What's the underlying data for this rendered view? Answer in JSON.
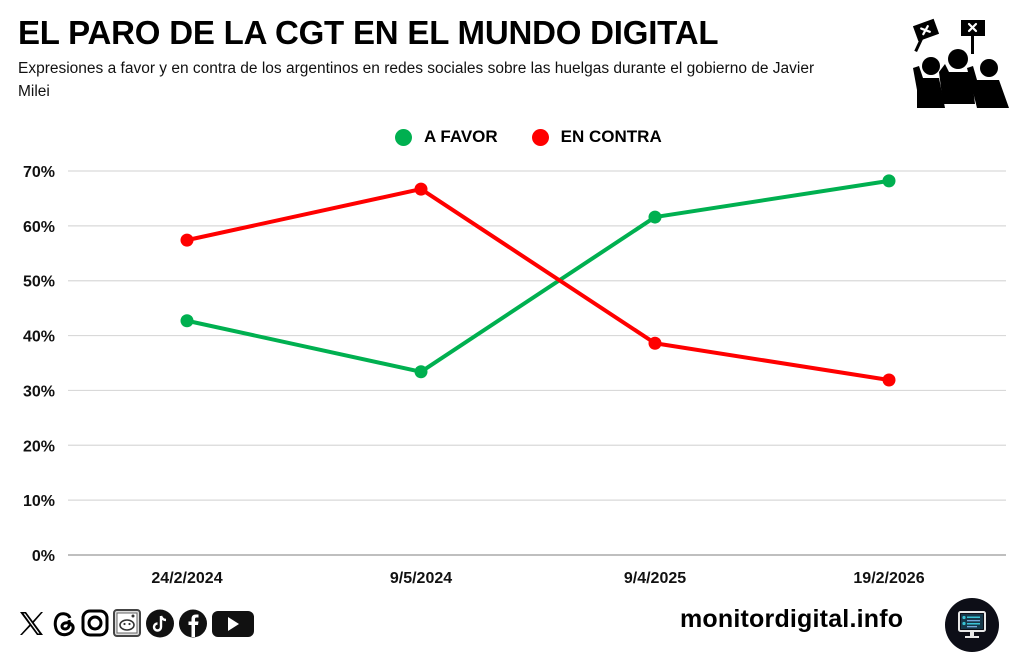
{
  "header": {
    "title": "EL PARO DE LA CGT EN EL MUNDO DIGITAL",
    "subtitle": "Expresiones a favor y en contra de los argentinos en redes sociales sobre las huelgas durante el gobierno de Javier Milei",
    "icon": "protest-crowd-icon"
  },
  "colors": {
    "favor": "#00b050",
    "contra": "#ff0000",
    "grid": "#d9d9d9",
    "axis": "#bfbfbf"
  },
  "chart_data": {
    "type": "line",
    "title": "EL PARO DE LA CGT EN EL MUNDO DIGITAL",
    "subtitle": "Expresiones a favor y en contra de los argentinos en redes sociales sobre las huelgas durante el gobierno de Javier Milei",
    "xlabel": "",
    "ylabel": "",
    "categories": [
      "24/2/2024",
      "9/5/2024",
      "9/4/2025",
      "19/2/2026"
    ],
    "ylim": [
      0,
      70
    ],
    "yticks": [
      0,
      10,
      20,
      30,
      40,
      50,
      60,
      70
    ],
    "ytick_labels": [
      "0%",
      "10%",
      "20%",
      "30%",
      "40%",
      "50%",
      "60%",
      "70%"
    ],
    "grid": true,
    "legend_position": "top-center",
    "series": [
      {
        "name": "A FAVOR",
        "color": "#00b050",
        "values": [
          42.7,
          33.4,
          61.6,
          68.2
        ]
      },
      {
        "name": "EN CONTRA",
        "color": "#ff0000",
        "values": [
          57.4,
          66.7,
          38.6,
          31.9
        ]
      }
    ]
  },
  "legend": {
    "items": [
      {
        "label": "A FAVOR",
        "color": "#00b050"
      },
      {
        "label": "EN CONTRA",
        "color": "#ff0000"
      }
    ]
  },
  "footer": {
    "social_icons": [
      "x-icon",
      "threads-icon",
      "instagram-icon",
      "reddit-icon",
      "tiktok-icon",
      "facebook-icon",
      "youtube-icon"
    ],
    "site": "monitordigital.info",
    "site_icon": "monitor-icon"
  }
}
